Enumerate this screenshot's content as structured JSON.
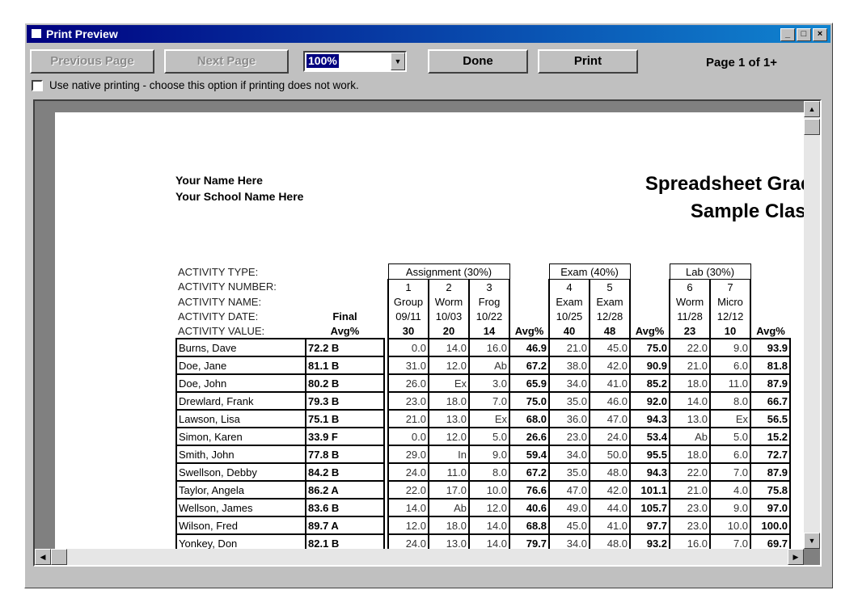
{
  "window": {
    "title": "Print Preview",
    "minimize": "_",
    "maximize": "□",
    "close": "×"
  },
  "toolbar": {
    "previous_page": "Previous Page",
    "next_page": "Next Page",
    "zoom_value": "100%",
    "done": "Done",
    "print": "Print",
    "page_indicator": "Page 1 of 1+"
  },
  "native_printing": {
    "label": "Use native printing - choose this option if printing does not work.",
    "checked": false
  },
  "report": {
    "teacher": "Your Name Here",
    "school": "Your School Name Here",
    "title": "Spreadsheet Grade",
    "class_name": "Sample Class",
    "header_labels": [
      "ACTIVITY TYPE:",
      "ACTIVITY NUMBER:",
      "ACTIVITY NAME:",
      "ACTIVITY DATE:",
      "ACTIVITY VALUE:"
    ],
    "final_label": "Final",
    "avg_label": "Avg%",
    "groups": [
      {
        "type": "Assignment (30%)",
        "activities": [
          {
            "number": "1",
            "name": "Group",
            "date": "09/11",
            "value": "30"
          },
          {
            "number": "2",
            "name": "Worm",
            "date": "10/03",
            "value": "20"
          },
          {
            "number": "3",
            "name": "Frog",
            "date": "10/22",
            "value": "14"
          }
        ]
      },
      {
        "type": "Exam (40%)",
        "activities": [
          {
            "number": "4",
            "name": "Exam",
            "date": "10/25",
            "value": "40"
          },
          {
            "number": "5",
            "name": "Exam",
            "date": "12/28",
            "value": "48"
          }
        ]
      },
      {
        "type": "Lab (30%)",
        "activities": [
          {
            "number": "6",
            "name": "Worm",
            "date": "11/28",
            "value": "23"
          },
          {
            "number": "7",
            "name": "Micro",
            "date": "12/12",
            "value": "10"
          }
        ]
      }
    ],
    "students": [
      {
        "name": "Burns, Dave",
        "final": "72.2 B",
        "scores": [
          [
            "0.0",
            "14.0",
            "16.0",
            "46.9"
          ],
          [
            "21.0",
            "45.0",
            "75.0"
          ],
          [
            "22.0",
            "9.0",
            "93.9"
          ]
        ]
      },
      {
        "name": "Doe, Jane",
        "final": "81.1 B",
        "scores": [
          [
            "31.0",
            "12.0",
            "Ab",
            "67.2"
          ],
          [
            "38.0",
            "42.0",
            "90.9"
          ],
          [
            "21.0",
            "6.0",
            "81.8"
          ]
        ]
      },
      {
        "name": "Doe, John",
        "final": "80.2 B",
        "scores": [
          [
            "26.0",
            "Ex",
            "3.0",
            "65.9"
          ],
          [
            "34.0",
            "41.0",
            "85.2"
          ],
          [
            "18.0",
            "11.0",
            "87.9"
          ]
        ]
      },
      {
        "name": "Drewlard, Frank",
        "final": "79.3 B",
        "scores": [
          [
            "23.0",
            "18.0",
            "7.0",
            "75.0"
          ],
          [
            "35.0",
            "46.0",
            "92.0"
          ],
          [
            "14.0",
            "8.0",
            "66.7"
          ]
        ]
      },
      {
        "name": "Lawson, Lisa",
        "final": "75.1 B",
        "scores": [
          [
            "21.0",
            "13.0",
            "Ex",
            "68.0"
          ],
          [
            "36.0",
            "47.0",
            "94.3"
          ],
          [
            "13.0",
            "Ex",
            "56.5"
          ]
        ]
      },
      {
        "name": "Simon, Karen",
        "final": "33.9 F",
        "scores": [
          [
            "0.0",
            "12.0",
            "5.0",
            "26.6"
          ],
          [
            "23.0",
            "24.0",
            "53.4"
          ],
          [
            "Ab",
            "5.0",
            "15.2"
          ]
        ]
      },
      {
        "name": "Smith, John",
        "final": "77.8 B",
        "scores": [
          [
            "29.0",
            "In",
            "9.0",
            "59.4"
          ],
          [
            "34.0",
            "50.0",
            "95.5"
          ],
          [
            "18.0",
            "6.0",
            "72.7"
          ]
        ]
      },
      {
        "name": "Swellson, Debby",
        "final": "84.2 B",
        "scores": [
          [
            "24.0",
            "11.0",
            "8.0",
            "67.2"
          ],
          [
            "35.0",
            "48.0",
            "94.3"
          ],
          [
            "22.0",
            "7.0",
            "87.9"
          ]
        ]
      },
      {
        "name": "Taylor, Angela",
        "final": "86.2 A",
        "scores": [
          [
            "22.0",
            "17.0",
            "10.0",
            "76.6"
          ],
          [
            "47.0",
            "42.0",
            "101.1"
          ],
          [
            "21.0",
            "4.0",
            "75.8"
          ]
        ]
      },
      {
        "name": "Wellson, James",
        "final": "83.6 B",
        "scores": [
          [
            "14.0",
            "Ab",
            "12.0",
            "40.6"
          ],
          [
            "49.0",
            "44.0",
            "105.7"
          ],
          [
            "23.0",
            "9.0",
            "97.0"
          ]
        ]
      },
      {
        "name": "Wilson, Fred",
        "final": "89.7 A",
        "scores": [
          [
            "12.0",
            "18.0",
            "14.0",
            "68.8"
          ],
          [
            "45.0",
            "41.0",
            "97.7"
          ],
          [
            "23.0",
            "10.0",
            "100.0"
          ]
        ]
      },
      {
        "name": "Yonkey, Don",
        "final": "82.1 B",
        "scores": [
          [
            "24.0",
            "13.0",
            "14.0",
            "79.7"
          ],
          [
            "34.0",
            "48.0",
            "93.2"
          ],
          [
            "16.0",
            "7.0",
            "69.7"
          ]
        ]
      }
    ]
  }
}
